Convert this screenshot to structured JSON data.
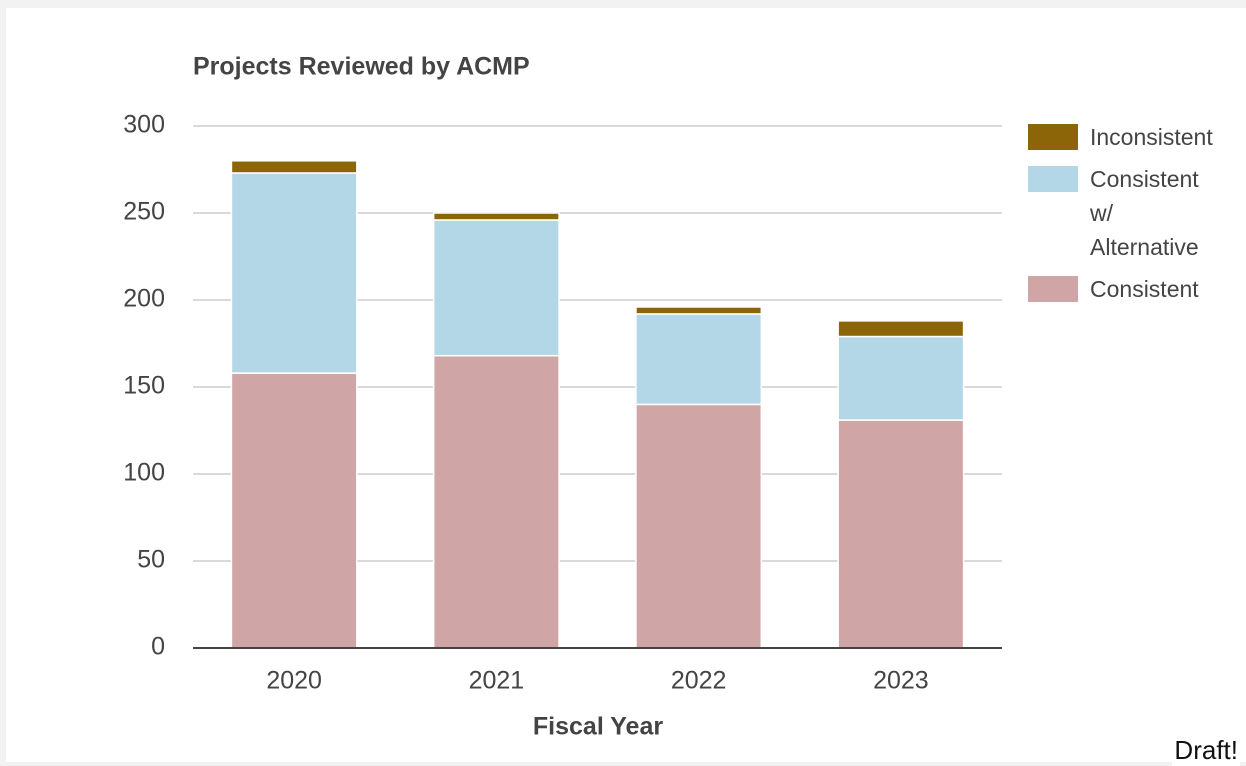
{
  "chart_data": {
    "type": "stacked_bar",
    "title": "Projects Reviewed by ACMP",
    "x_label": "Fiscal Year",
    "categories": [
      "2020",
      "2021",
      "2022",
      "2023"
    ],
    "series": [
      {
        "name": "Consistent",
        "color": "#cfa5a6",
        "values": [
          158,
          168,
          140,
          131
        ]
      },
      {
        "name": "Consistent w/ Alternative",
        "color": "#b3d7e6",
        "values": [
          115,
          78,
          52,
          48
        ]
      },
      {
        "name": "Inconsistent",
        "color": "#8b6508",
        "values": [
          7,
          4,
          4,
          9
        ]
      }
    ],
    "ylim": [
      0,
      300
    ],
    "yticks": [
      0,
      50,
      100,
      150,
      200,
      250,
      300
    ],
    "grid": true,
    "legend": "right"
  },
  "watermark": "Draft!"
}
